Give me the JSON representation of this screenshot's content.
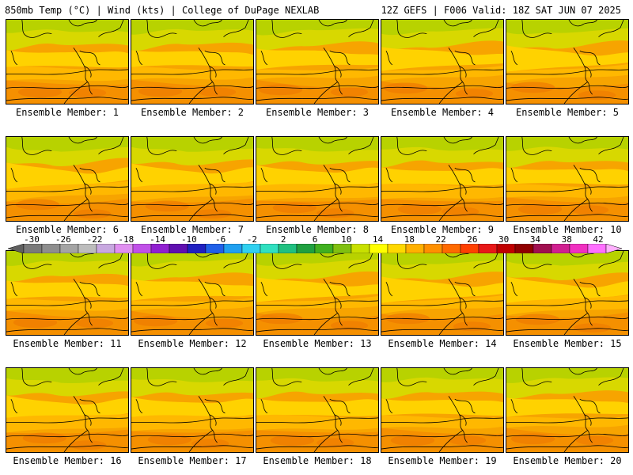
{
  "header": {
    "left": "850mb Temp (°C) | Wind (kts) | College of DuPage NEXLAB",
    "right": "12Z GEFS | F006 Valid: 18Z SAT JUN 07 2025"
  },
  "panels": [
    {
      "label": "Ensemble Member: 1"
    },
    {
      "label": "Ensemble Member: 2"
    },
    {
      "label": "Ensemble Member: 3"
    },
    {
      "label": "Ensemble Member: 4"
    },
    {
      "label": "Ensemble Member: 5"
    },
    {
      "label": "Ensemble Member: 6"
    },
    {
      "label": "Ensemble Member: 7"
    },
    {
      "label": "Ensemble Member: 8"
    },
    {
      "label": "Ensemble Member: 9"
    },
    {
      "label": "Ensemble Member: 10"
    },
    {
      "label": "Ensemble Member: 11"
    },
    {
      "label": "Ensemble Member: 12"
    },
    {
      "label": "Ensemble Member: 13"
    },
    {
      "label": "Ensemble Member: 14"
    },
    {
      "label": "Ensemble Member: 15"
    },
    {
      "label": "Ensemble Member: 16"
    },
    {
      "label": "Ensemble Member: 17"
    },
    {
      "label": "Ensemble Member: 18"
    },
    {
      "label": "Ensemble Member: 19"
    },
    {
      "label": "Ensemble Member: 20"
    }
  ],
  "colorbar": {
    "tick_labels": [
      "-30",
      "-26",
      "-22",
      "-18",
      "-14",
      "-10",
      "-6",
      "-2",
      "2",
      "6",
      "10",
      "14",
      "18",
      "22",
      "26",
      "30",
      "34",
      "38",
      "42"
    ],
    "colors": [
      "#606060",
      "#7a7a7a",
      "#8e8e8e",
      "#a4a4a4",
      "#bcbcbc",
      "#c8a8e0",
      "#e090f0",
      "#c050e8",
      "#9020d0",
      "#6010b0",
      "#2020c0",
      "#2060e8",
      "#20a0f0",
      "#30d0f0",
      "#30e0c0",
      "#20c080",
      "#20a040",
      "#40b020",
      "#80c010",
      "#c8e000",
      "#ffff00",
      "#ffd800",
      "#ffb000",
      "#ff9000",
      "#ff6a00",
      "#ff4000",
      "#e81818",
      "#c00000",
      "#900000",
      "#a01050",
      "#d02090",
      "#f030c0",
      "#ff70ff",
      "#ffb0ff"
    ]
  }
}
